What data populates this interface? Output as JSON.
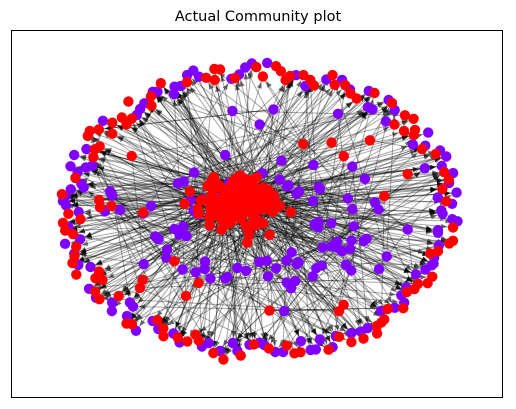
{
  "figure": {
    "title": "Actual Community plot"
  },
  "legend": {
    "communities": [
      {
        "color": "#ff0000"
      },
      {
        "color": "#8000ff"
      }
    ]
  },
  "edges": {
    "color": "#000000",
    "opacity": 0.35
  }
}
